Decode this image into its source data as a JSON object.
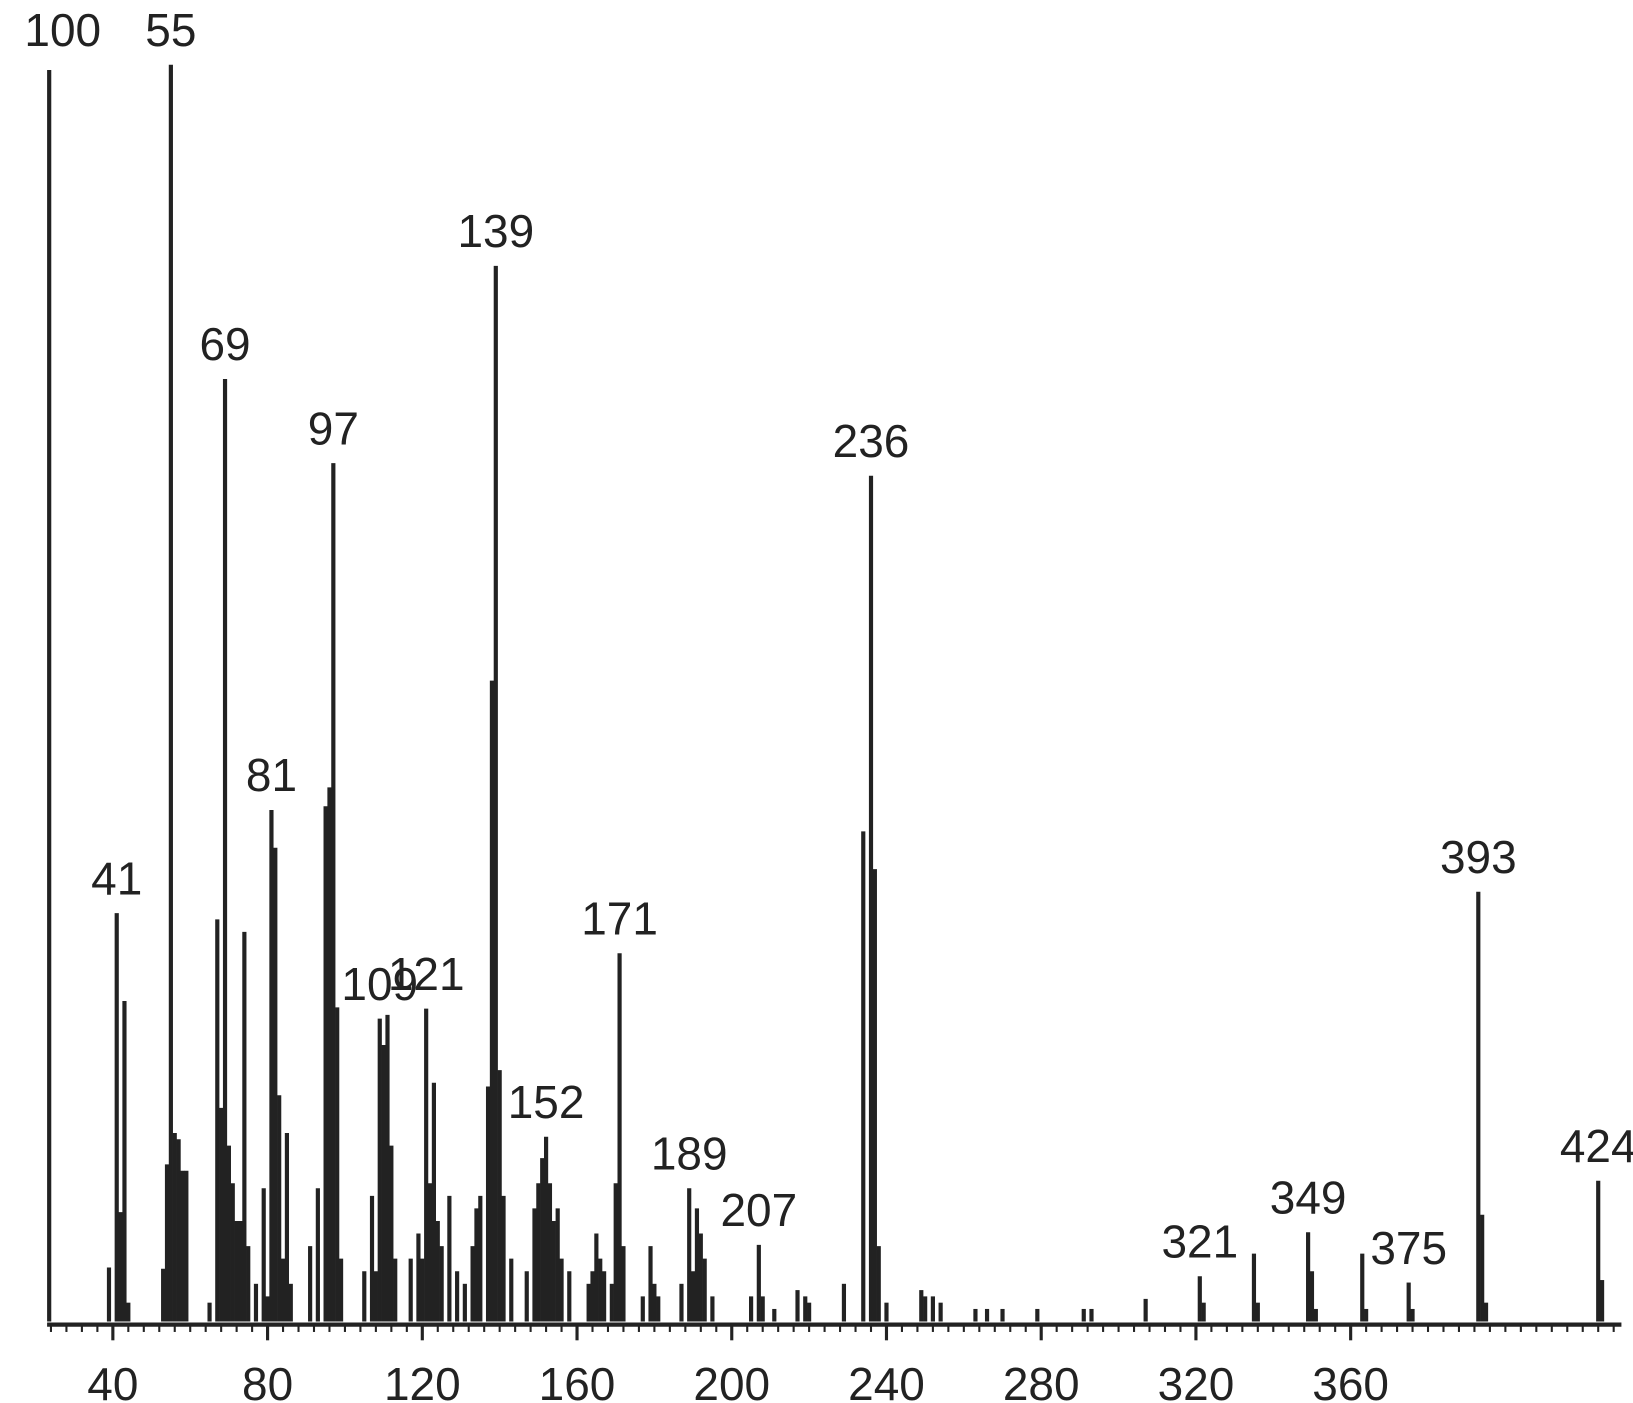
{
  "chart_data": {
    "type": "spectrum",
    "x": [
      39,
      41,
      42,
      43,
      44,
      53,
      54,
      55,
      56,
      57,
      58,
      59,
      65,
      67,
      68,
      69,
      70,
      71,
      72,
      73,
      74,
      75,
      77,
      79,
      80,
      81,
      82,
      83,
      84,
      85,
      86,
      91,
      93,
      95,
      96,
      97,
      98,
      99,
      105,
      107,
      108,
      109,
      110,
      111,
      112,
      113,
      117,
      119,
      120,
      121,
      122,
      123,
      124,
      125,
      127,
      129,
      131,
      133,
      134,
      135,
      137,
      138,
      139,
      140,
      141,
      143,
      147,
      149,
      150,
      151,
      152,
      153,
      154,
      155,
      156,
      158,
      163,
      164,
      165,
      166,
      167,
      169,
      170,
      171,
      172,
      177,
      179,
      180,
      181,
      187,
      189,
      190,
      191,
      192,
      193,
      195,
      205,
      207,
      208,
      211,
      217,
      219,
      220,
      229,
      234,
      236,
      237,
      238,
      240,
      249,
      250,
      252,
      254,
      263,
      266,
      270,
      279,
      291,
      293,
      307,
      321,
      322,
      335,
      336,
      349,
      350,
      351,
      363,
      364,
      375,
      376,
      393,
      394,
      395,
      424,
      425
    ],
    "values": [
      4.3,
      32.5,
      8.7,
      25.5,
      1.5,
      4.2,
      12.5,
      100,
      15,
      14.5,
      12,
      12,
      1.5,
      32,
      17,
      75,
      14,
      11,
      8,
      8,
      31,
      6,
      3,
      10.6,
      2,
      40.7,
      37.7,
      18,
      5,
      15,
      3,
      6,
      10.6,
      41,
      42.5,
      68.3,
      25,
      5,
      4,
      10,
      4,
      24.1,
      22,
      24.4,
      14,
      5,
      5,
      7,
      5,
      24.9,
      11,
      19,
      8,
      6,
      10,
      4,
      3,
      6,
      9,
      10,
      18.7,
      51,
      84,
      20,
      10,
      5,
      4,
      9,
      11,
      13,
      14.7,
      11,
      8,
      9,
      5,
      4,
      3,
      4,
      7,
      5,
      4,
      3,
      11,
      29.3,
      6,
      2,
      6,
      3,
      2,
      3,
      10.6,
      4,
      9,
      7,
      5,
      2,
      2,
      6.1,
      2,
      1,
      2.5,
      2,
      1.5,
      3,
      39,
      67.3,
      36,
      6,
      1.5,
      2.5,
      2,
      2,
      1.5,
      1,
      1,
      1,
      1,
      1,
      1,
      1.8,
      3.6,
      1.5,
      5.4,
      1.5,
      7.1,
      4,
      1,
      5.4,
      1,
      3.1,
      1,
      34.2,
      8.5,
      1.5,
      11.2,
      3.3
    ],
    "labeled": [
      false,
      true,
      false,
      false,
      false,
      false,
      false,
      true,
      false,
      false,
      false,
      false,
      false,
      false,
      false,
      true,
      false,
      false,
      false,
      false,
      false,
      false,
      false,
      false,
      false,
      true,
      false,
      false,
      false,
      false,
      false,
      false,
      false,
      false,
      false,
      true,
      false,
      false,
      false,
      false,
      false,
      true,
      false,
      false,
      false,
      false,
      false,
      false,
      false,
      true,
      false,
      false,
      false,
      false,
      false,
      false,
      false,
      false,
      false,
      false,
      false,
      false,
      true,
      false,
      false,
      false,
      false,
      false,
      false,
      false,
      true,
      false,
      false,
      false,
      false,
      false,
      false,
      false,
      false,
      false,
      false,
      false,
      false,
      true,
      false,
      false,
      false,
      false,
      false,
      false,
      true,
      false,
      false,
      false,
      false,
      false,
      false,
      true,
      false,
      false,
      false,
      false,
      false,
      false,
      false,
      true,
      false,
      false,
      false,
      false,
      false,
      false,
      false,
      false,
      false,
      false,
      false,
      false,
      false,
      false,
      true,
      false,
      false,
      false,
      true,
      false,
      false,
      false,
      false,
      true,
      false,
      true,
      false,
      false,
      true,
      false
    ],
    "color": "#222222",
    "xlim": [
      23,
      430
    ],
    "xticks": [
      40,
      80,
      120,
      160,
      200,
      240,
      280,
      320,
      360
    ],
    "xminor_step": 4,
    "ylim": [
      0,
      100
    ],
    "yticks": [
      100
    ]
  }
}
